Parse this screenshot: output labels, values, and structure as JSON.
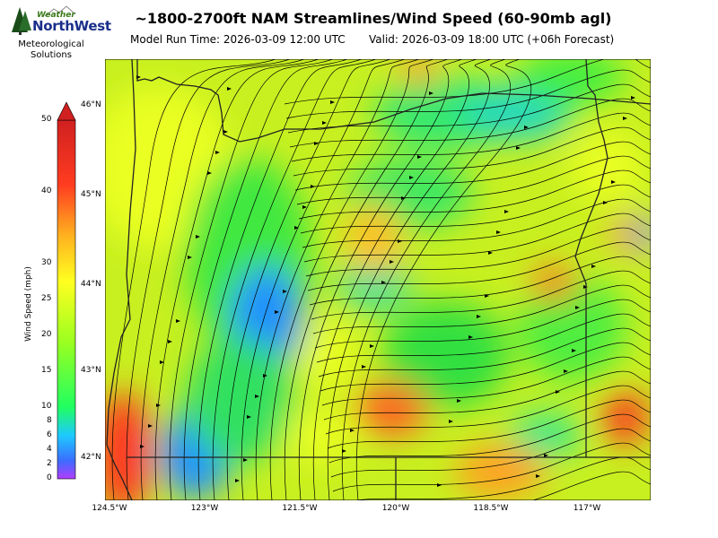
{
  "header": {
    "title": "~1800-2700ft NAM Streamlines/Wind Speed (60-90mb agl)",
    "run_time": "Model Run Time: 2026-03-09 12:00 UTC",
    "valid_time": "Valid: 2026-03-09 18:00 UTC  (+06h Forecast)"
  },
  "logo": {
    "top": "Weather",
    "main": "NorthWest",
    "sub_line1": "Meteorological",
    "sub_line2": "Solutions"
  },
  "colorbar": {
    "title": "Wind Speed (mph)",
    "ticks": [
      "0",
      "2",
      "4",
      "6",
      "8",
      "10",
      "15",
      "20",
      "25",
      "30",
      "40",
      "50"
    ]
  },
  "axes": {
    "lat_labels": [
      "46°N",
      "45°N",
      "44°N",
      "43°N",
      "42°N"
    ],
    "lon_labels": [
      "124.5°W",
      "123°W",
      "121.5°W",
      "120°W",
      "118.5°W",
      "117°W"
    ]
  }
}
